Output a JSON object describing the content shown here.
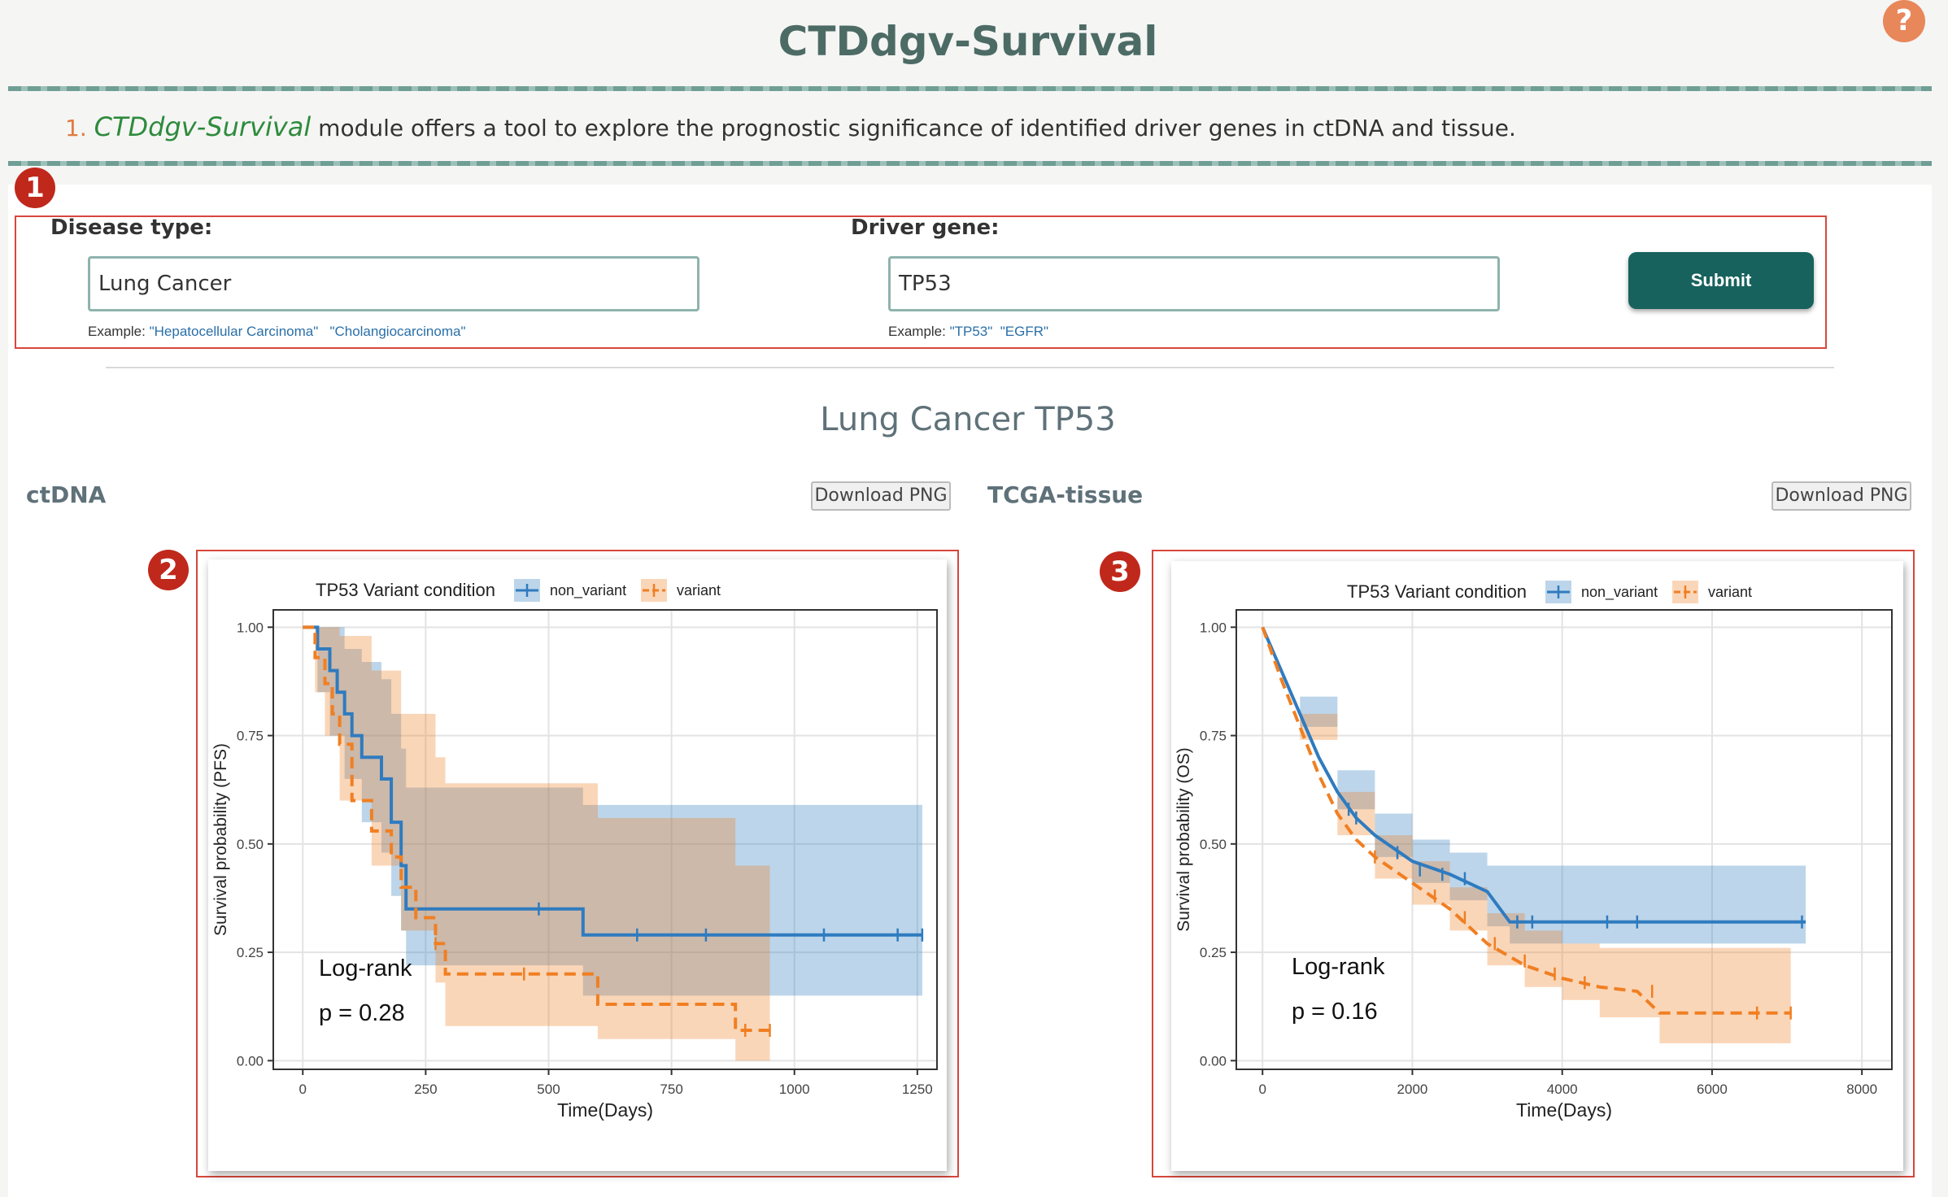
{
  "header": {
    "title": "CTDdgv-Survival",
    "help_icon": "?",
    "description": {
      "number": "1.",
      "module": "CTDdgv-Survival",
      "text": " module offers a tool to explore the prognostic significance of identified driver genes in ctDNA and tissue."
    }
  },
  "badges": [
    "1",
    "2",
    "3"
  ],
  "form": {
    "disease_label": "Disease type:",
    "disease_value": "Lung Cancer",
    "disease_example_prefix": "Example: ",
    "disease_examples": [
      "\"Hepatocellular Carcinoma\"",
      "\"Cholangiocarcinoma\""
    ],
    "gene_label": "Driver gene:",
    "gene_value": "TP53",
    "gene_example_prefix": "Example: ",
    "gene_examples": [
      "\"TP53\"",
      "\"EGFR\""
    ],
    "submit_label": "Submit"
  },
  "result": {
    "title": "Lung Cancer TP53",
    "ctdna_label": "ctDNA",
    "tissue_label": "TCGA-tissue",
    "download_label": "Download PNG"
  },
  "colors": {
    "non_variant": "#2f7bbf",
    "variant": "#f07f22"
  },
  "chart_data": [
    {
      "type": "line",
      "legend_title": "TP53 Variant condition",
      "legend_position": "top",
      "series": [
        {
          "name": "non_variant",
          "style": "solid",
          "x": [
            0,
            30,
            30,
            55,
            55,
            70,
            70,
            85,
            85,
            100,
            100,
            120,
            120,
            160,
            160,
            180,
            180,
            200,
            200,
            210,
            210,
            570,
            570,
            1260
          ],
          "y": [
            1.0,
            1.0,
            0.95,
            0.95,
            0.9,
            0.9,
            0.85,
            0.85,
            0.8,
            0.8,
            0.75,
            0.75,
            0.7,
            0.7,
            0.65,
            0.65,
            0.55,
            0.55,
            0.45,
            0.45,
            0.35,
            0.35,
            0.29,
            0.29
          ],
          "ci_x": [
            0,
            30,
            55,
            85,
            120,
            160,
            180,
            200,
            210,
            570,
            1260
          ],
          "ci_lower": [
            1.0,
            0.85,
            0.75,
            0.65,
            0.55,
            0.48,
            0.38,
            0.3,
            0.22,
            0.15,
            0.15
          ],
          "ci_upper": [
            1.0,
            1.0,
            1.0,
            0.95,
            0.92,
            0.88,
            0.8,
            0.72,
            0.63,
            0.59,
            0.59
          ],
          "censor_x": [
            480,
            680,
            820,
            1060,
            1210,
            1260
          ],
          "censor_y": [
            0.35,
            0.29,
            0.29,
            0.29,
            0.29,
            0.29
          ]
        },
        {
          "name": "variant",
          "style": "dashed",
          "x": [
            0,
            25,
            25,
            45,
            45,
            60,
            60,
            75,
            75,
            100,
            100,
            140,
            140,
            180,
            180,
            200,
            200,
            230,
            230,
            270,
            270,
            290,
            290,
            600,
            600,
            880,
            880,
            950
          ],
          "y": [
            1.0,
            1.0,
            0.93,
            0.93,
            0.87,
            0.87,
            0.8,
            0.8,
            0.73,
            0.73,
            0.6,
            0.6,
            0.53,
            0.53,
            0.47,
            0.47,
            0.4,
            0.4,
            0.33,
            0.33,
            0.27,
            0.27,
            0.2,
            0.2,
            0.13,
            0.13,
            0.07,
            0.07
          ],
          "ci_x": [
            0,
            25,
            45,
            75,
            140,
            200,
            270,
            290,
            600,
            880,
            950
          ],
          "ci_lower": [
            1.0,
            0.85,
            0.75,
            0.6,
            0.45,
            0.3,
            0.18,
            0.08,
            0.05,
            0.0,
            0.0
          ],
          "ci_upper": [
            1.0,
            1.0,
            1.0,
            0.98,
            0.9,
            0.8,
            0.7,
            0.64,
            0.56,
            0.45,
            0.45
          ],
          "censor_x": [
            270,
            450,
            900,
            950
          ],
          "censor_y": [
            0.27,
            0.2,
            0.07,
            0.07
          ]
        }
      ],
      "annotations": [
        "Log-rank",
        "p = 0.28"
      ],
      "xlabel": "Time(Days)",
      "ylabel": "Survival probability (PFS)",
      "xlim": [
        -60,
        1290
      ],
      "ylim": [
        -0.02,
        1.04
      ],
      "xticks": [
        0,
        250,
        500,
        750,
        1000,
        1250
      ],
      "yticks": [
        "0.00",
        "0.25",
        "0.50",
        "0.75",
        "1.00"
      ],
      "grid": true
    },
    {
      "type": "line",
      "legend_title": "TP53 Variant condition",
      "legend_position": "top",
      "series": [
        {
          "name": "non_variant",
          "style": "solid",
          "x": [
            0,
            250,
            500,
            750,
            1000,
            1250,
            1500,
            2000,
            2500,
            3000,
            3300,
            4000,
            5000,
            6000,
            7000,
            7250
          ],
          "y": [
            1.0,
            0.9,
            0.8,
            0.7,
            0.62,
            0.56,
            0.52,
            0.46,
            0.43,
            0.39,
            0.32,
            0.32,
            0.32,
            0.32,
            0.32,
            0.32
          ],
          "ci_x": [
            0,
            500,
            1000,
            1500,
            2000,
            2500,
            3000,
            3300,
            7250
          ],
          "ci_lower": [
            1.0,
            0.77,
            0.58,
            0.47,
            0.41,
            0.37,
            0.31,
            0.27,
            0.27
          ],
          "ci_upper": [
            1.0,
            0.84,
            0.67,
            0.57,
            0.51,
            0.48,
            0.45,
            0.45,
            0.45
          ],
          "censor_x": [
            1150,
            1250,
            1800,
            2100,
            2400,
            2700,
            3400,
            3600,
            4600,
            5000,
            7200
          ],
          "censor_y": [
            0.58,
            0.56,
            0.48,
            0.44,
            0.43,
            0.42,
            0.32,
            0.32,
            0.32,
            0.32,
            0.32
          ]
        },
        {
          "name": "variant",
          "style": "dashed",
          "x": [
            0,
            250,
            500,
            750,
            1000,
            1250,
            1500,
            2000,
            2500,
            3000,
            3500,
            4000,
            4500,
            5000,
            5300,
            6000,
            7000,
            7050
          ],
          "y": [
            1.0,
            0.88,
            0.77,
            0.66,
            0.57,
            0.51,
            0.47,
            0.41,
            0.35,
            0.27,
            0.22,
            0.19,
            0.17,
            0.16,
            0.11,
            0.11,
            0.11,
            0.11
          ],
          "ci_x": [
            0,
            500,
            1000,
            1500,
            2000,
            2500,
            3000,
            3500,
            4000,
            4500,
            5300,
            7050
          ],
          "ci_lower": [
            1.0,
            0.74,
            0.52,
            0.42,
            0.36,
            0.3,
            0.22,
            0.17,
            0.14,
            0.1,
            0.04,
            0.04
          ],
          "ci_upper": [
            1.0,
            0.8,
            0.62,
            0.52,
            0.46,
            0.4,
            0.34,
            0.3,
            0.27,
            0.26,
            0.26,
            0.26
          ],
          "censor_x": [
            1500,
            2300,
            2700,
            3100,
            3500,
            3900,
            4300,
            5200,
            6600,
            7050
          ],
          "censor_y": [
            0.47,
            0.38,
            0.33,
            0.27,
            0.23,
            0.2,
            0.18,
            0.16,
            0.11,
            0.11
          ]
        }
      ],
      "annotations": [
        "Log-rank",
        "p = 0.16"
      ],
      "xlabel": "Time(Days)",
      "ylabel": "Survival probability (OS)",
      "xlim": [
        -350,
        8400
      ],
      "ylim": [
        -0.02,
        1.04
      ],
      "xticks": [
        0,
        2000,
        4000,
        6000,
        8000
      ],
      "yticks": [
        "0.00",
        "0.25",
        "0.50",
        "0.75",
        "1.00"
      ],
      "grid": true
    }
  ]
}
